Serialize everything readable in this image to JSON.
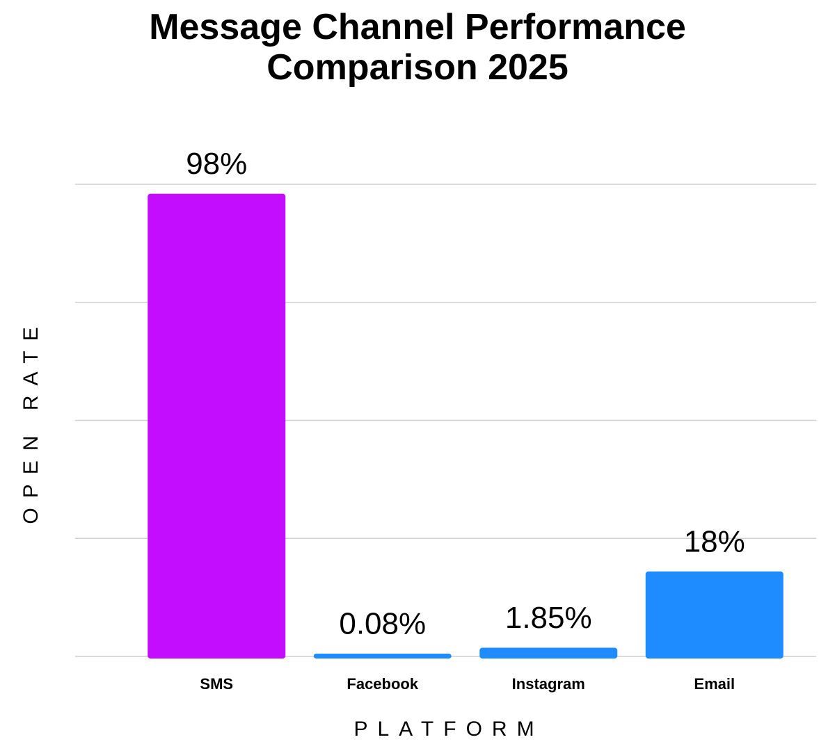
{
  "chart_data": {
    "type": "bar",
    "title": "Message Channel Performance Comparison 2025",
    "x_label": "PLATFORM",
    "y_label": "OPEN RATE",
    "categories": [
      "SMS",
      "Facebook",
      "Instagram",
      "Email"
    ],
    "values": [
      98,
      0.08,
      1.85,
      18
    ],
    "value_labels": [
      "98%",
      "0.08%",
      "1.85%",
      "18%"
    ],
    "colors": [
      "#c30dff",
      "#1e8cff",
      "#1e8cff",
      "#1e8cff"
    ],
    "ylim": [
      0,
      100
    ],
    "yticks": [
      0,
      25,
      50,
      75,
      100
    ],
    "grid": true
  }
}
